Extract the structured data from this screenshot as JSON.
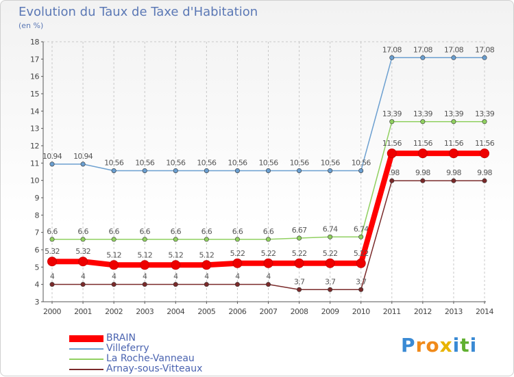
{
  "chart_data": {
    "type": "line",
    "title": "Evolution du Taux de Taxe d'Habitation",
    "ylabel": "(en %)",
    "xlabel": "",
    "ylim": [
      3,
      18
    ],
    "yticks": [
      3,
      4,
      5,
      6,
      7,
      8,
      9,
      10,
      11,
      12,
      13,
      14,
      15,
      16,
      17,
      18
    ],
    "categories": [
      "2000",
      "2001",
      "2002",
      "2003",
      "2004",
      "2005",
      "2006",
      "2007",
      "2008",
      "2009",
      "2010",
      "2011",
      "2012",
      "2013",
      "2014"
    ],
    "grid": "vertical dashed",
    "legend_position": "bottom-left",
    "series": [
      {
        "name": "BRAIN",
        "color": "#ff0000",
        "values": [
          5.32,
          5.32,
          5.12,
          5.12,
          5.12,
          5.12,
          5.22,
          5.22,
          5.22,
          5.22,
          5.22,
          11.56,
          11.56,
          11.56,
          11.56
        ],
        "labels": [
          "5.32",
          "5.32",
          "5.12",
          "5.12",
          "5.12",
          "5.12",
          "5.22",
          "5.22",
          "5.22",
          "5.22",
          "5.22",
          "11.56",
          "11.56",
          "11.56",
          "11.56"
        ]
      },
      {
        "name": "Villeferry",
        "color": "#6b9fd0",
        "values": [
          10.94,
          10.94,
          10.56,
          10.56,
          10.56,
          10.56,
          10.56,
          10.56,
          10.56,
          10.56,
          10.56,
          17.08,
          17.08,
          17.08,
          17.08
        ],
        "labels": [
          "10.94",
          "10.94",
          "10.56",
          "10.56",
          "10.56",
          "10.56",
          "10.56",
          "10.56",
          "10.56",
          "10.56",
          "10.56",
          "17.08",
          "17.08",
          "17.08",
          "17.08"
        ]
      },
      {
        "name": "La Roche-Vanneau",
        "color": "#90d060",
        "values": [
          6.6,
          6.6,
          6.6,
          6.6,
          6.6,
          6.6,
          6.6,
          6.6,
          6.67,
          6.74,
          6.74,
          13.39,
          13.39,
          13.39,
          13.39
        ],
        "labels": [
          "6.6",
          "6.6",
          "6.6",
          "6.6",
          "6.6",
          "6.6",
          "6.6",
          "6.6",
          "6.67",
          "6.74",
          "6.74",
          "13.39",
          "13.39",
          "13.39",
          "13.39"
        ]
      },
      {
        "name": "Arnay-sous-Vitteaux",
        "color": "#7a2a2a",
        "values": [
          4,
          4,
          4,
          4,
          4,
          4,
          4,
          4,
          3.7,
          3.7,
          3.7,
          9.98,
          9.98,
          9.98,
          9.98
        ],
        "labels": [
          "4",
          "4",
          "4",
          "4",
          "4",
          "4",
          "4",
          "4",
          "3.7",
          "3.7",
          "3.7",
          "9.98",
          "9.98",
          "9.98",
          "9.98"
        ]
      }
    ]
  },
  "logo": {
    "text": "Proxiti",
    "letters": [
      "P",
      "r",
      "o",
      "x",
      "i",
      "t",
      "i"
    ],
    "colors": [
      "#3a8ad4",
      "#f08a1a",
      "#f08a1a",
      "#e8b400",
      "#3a8ad4",
      "#60b030",
      "#3a8ad4"
    ]
  }
}
